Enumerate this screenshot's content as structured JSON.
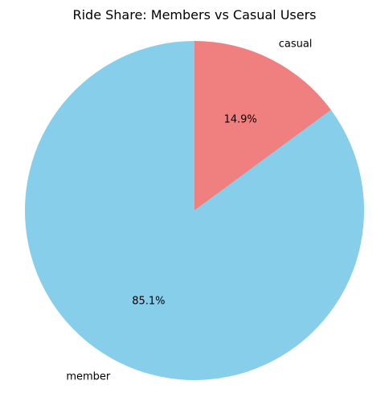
{
  "chart_data": {
    "type": "pie",
    "title": "Ride Share: Members vs Casual Users",
    "categories": [
      "casual",
      "member"
    ],
    "values": [
      14.9,
      85.1
    ],
    "value_labels": [
      "14.9%",
      "85.1%"
    ],
    "colors": [
      "#f08080",
      "#87ceeb"
    ],
    "start_angle": "top (12 o'clock)",
    "direction": "clockwise",
    "legend": "none"
  }
}
